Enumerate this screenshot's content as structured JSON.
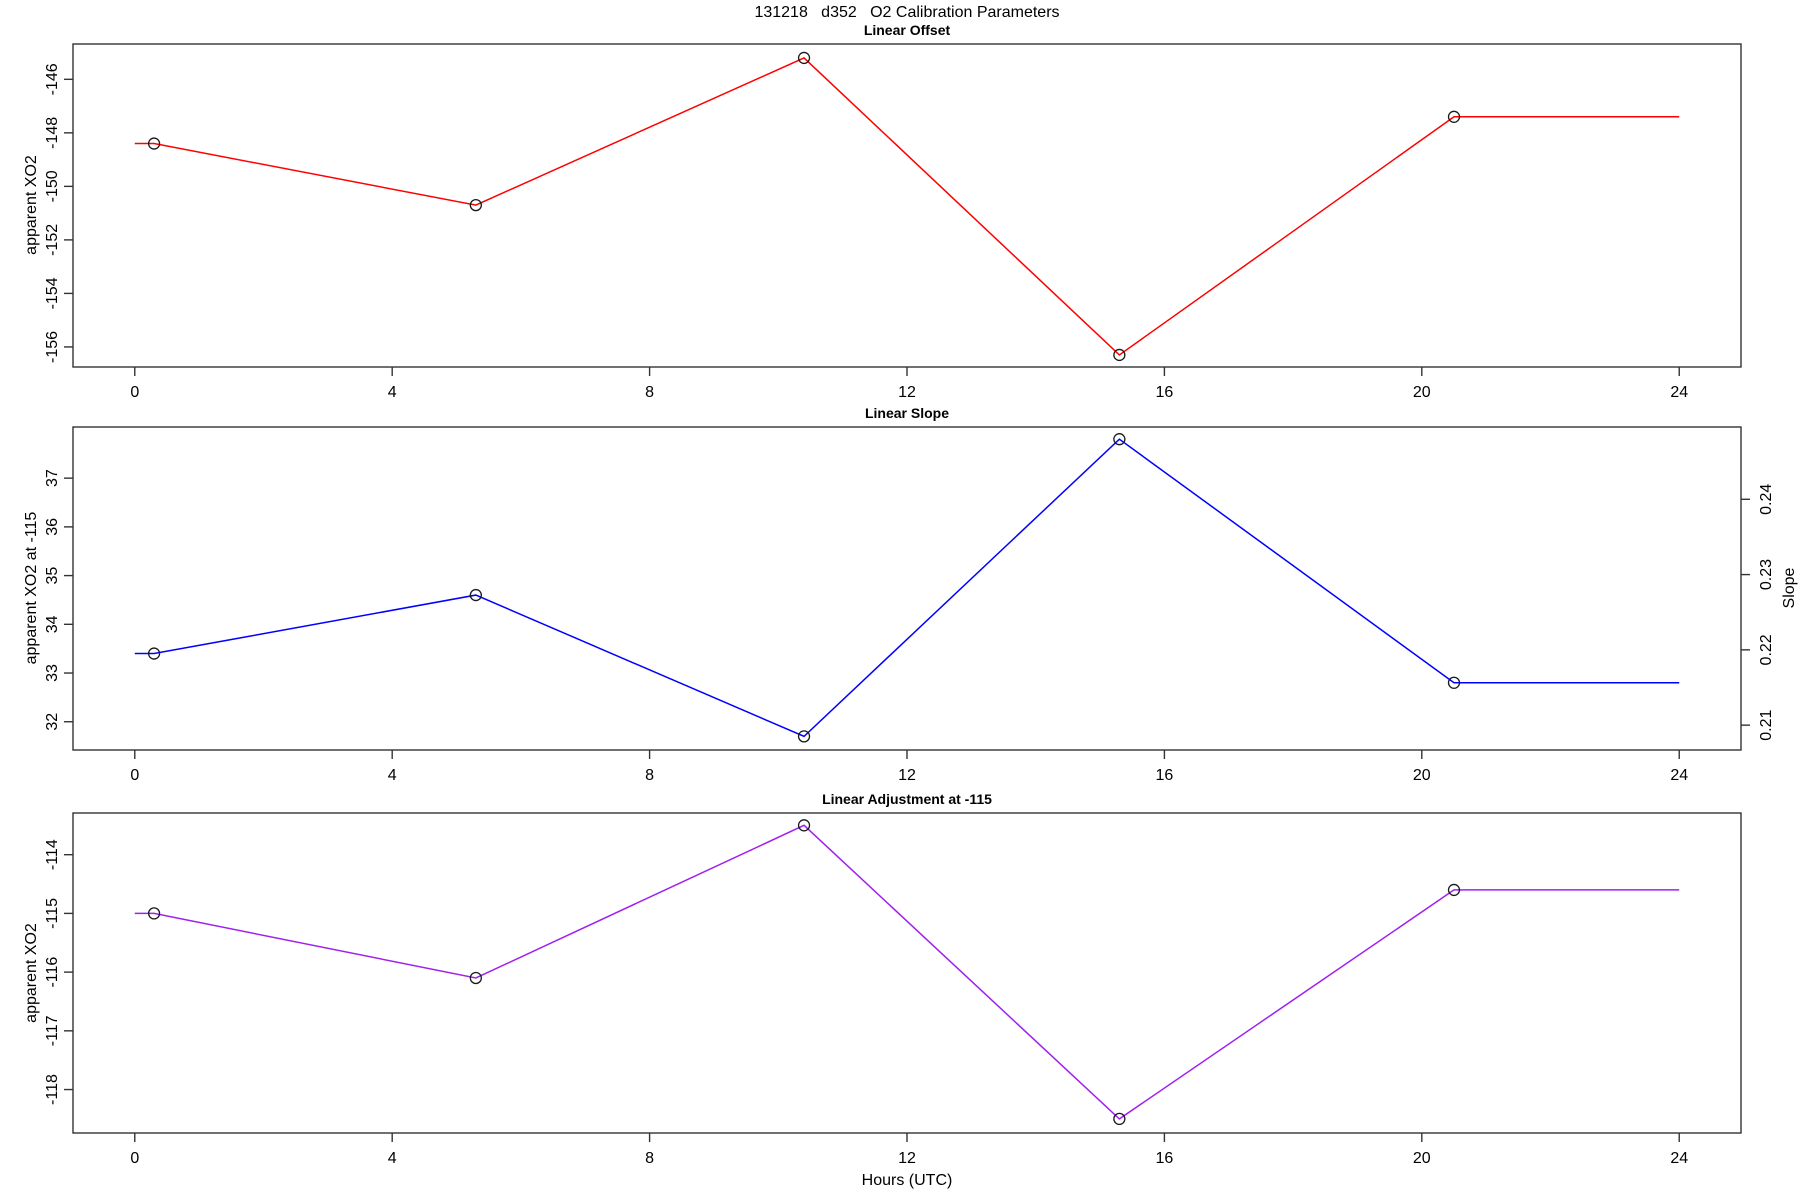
{
  "title": "131218   d352   O2 Calibration Parameters",
  "x_axis": {
    "label": "Hours (UTC)",
    "ticks": [
      0,
      4,
      8,
      12,
      16,
      20,
      24
    ],
    "lim": [
      -0.96,
      24.96
    ]
  },
  "chart_data": [
    {
      "type": "line",
      "title": "Linear Offset",
      "ylabel": "apparent XO2",
      "color": "#FF0000",
      "ylim": [
        -156.75,
        -144.68
      ],
      "yticks": [
        -156,
        -154,
        -152,
        -150,
        -148,
        -146
      ],
      "x": [
        0,
        0.3,
        5.3,
        10.4,
        15.3,
        20.5,
        24
      ],
      "y": [
        -148.4,
        -148.4,
        -150.7,
        -145.2,
        -156.3,
        -147.4,
        -147.4
      ],
      "markers": {
        "x": [
          0.3,
          5.3,
          10.4,
          15.3,
          20.5
        ],
        "y": [
          -148.4,
          -150.7,
          -145.2,
          -156.3,
          -147.4
        ]
      }
    },
    {
      "type": "line",
      "title": "Linear Slope",
      "ylabel": "apparent XO2 at -115",
      "ylabel_right": "Slope",
      "color": "#0000FF",
      "ylim": [
        31.42,
        38.05
      ],
      "yticks": [
        32,
        33,
        34,
        35,
        36,
        37
      ],
      "right_ylim": [
        0.2067,
        0.2496
      ],
      "right_yticks": [
        0.21,
        0.22,
        0.23,
        0.24
      ],
      "x": [
        0,
        0.3,
        5.3,
        10.4,
        15.3,
        20.5,
        24
      ],
      "y": [
        33.4,
        33.4,
        34.6,
        31.7,
        37.8,
        32.8,
        32.8
      ],
      "markers": {
        "x": [
          0.3,
          5.3,
          10.4,
          15.3,
          20.5
        ],
        "y": [
          33.4,
          34.6,
          31.7,
          37.8,
          32.8
        ]
      },
      "slope_values": [
        0.219,
        0.227,
        0.208,
        0.248,
        0.215
      ]
    },
    {
      "type": "line",
      "title": "Linear Adjustment at -115",
      "ylabel": "apparent XO2",
      "color": "#A020F0",
      "ylim": [
        -118.74,
        -113.29
      ],
      "yticks": [
        -118,
        -117,
        -116,
        -115,
        -114
      ],
      "x": [
        0,
        0.3,
        5.3,
        10.4,
        15.3,
        20.5,
        24
      ],
      "y": [
        -115.0,
        -115.0,
        -116.1,
        -113.5,
        -118.5,
        -114.6,
        -114.6
      ],
      "markers": {
        "x": [
          0.3,
          5.3,
          10.4,
          15.3,
          20.5
        ],
        "y": [
          -115.0,
          -116.1,
          -113.5,
          -118.5,
          -114.6
        ]
      }
    }
  ]
}
